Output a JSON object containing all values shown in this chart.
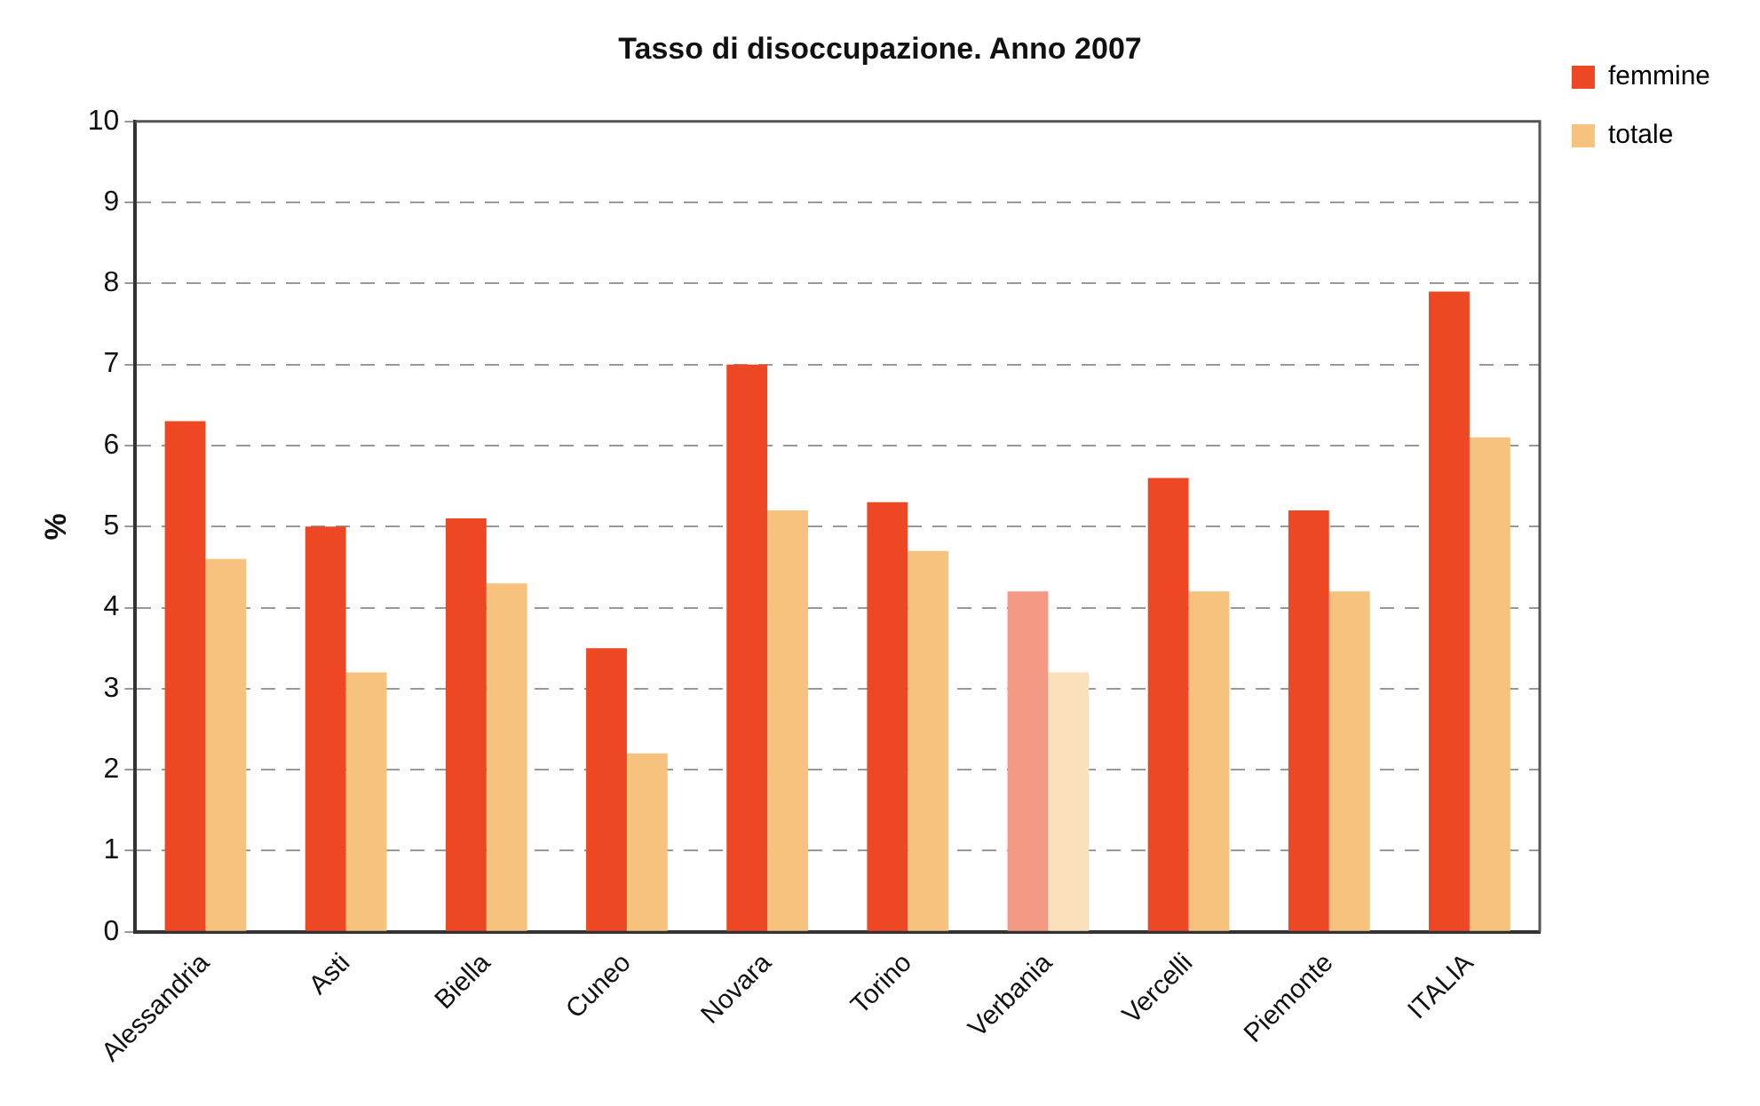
{
  "chart_data": {
    "type": "bar",
    "title": "Tasso di disoccupazione. Anno 2007",
    "ylabel": "%",
    "categories": [
      "Alessandria",
      "Asti",
      "Biella",
      "Cuneo",
      "Novara",
      "Torino",
      "Verbania",
      "Vercelli",
      "Piemonte",
      "ITALIA"
    ],
    "series": [
      {
        "name": "femmine",
        "color": "#ee4723",
        "colors": [
          "#ee4723",
          "#ee4723",
          "#ee4723",
          "#ee4723",
          "#ee4723",
          "#ee4723",
          "#f49a84",
          "#ee4723",
          "#ee4723",
          "#ee4723"
        ],
        "values": [
          6.3,
          5.0,
          5.1,
          3.5,
          7.0,
          5.3,
          4.2,
          5.6,
          5.2,
          7.9
        ]
      },
      {
        "name": "totale",
        "color": "#f7c27e",
        "colors": [
          "#f7c27e",
          "#f7c27e",
          "#f7c27e",
          "#f7c27e",
          "#f7c27e",
          "#f7c27e",
          "#fbe0bc",
          "#f7c27e",
          "#f7c27e",
          "#f7c27e"
        ],
        "values": [
          4.6,
          3.2,
          4.3,
          2.2,
          5.2,
          4.7,
          3.2,
          4.2,
          4.2,
          6.1
        ]
      }
    ],
    "ylim": [
      0,
      10
    ],
    "yticks": [
      0,
      1,
      2,
      3,
      4,
      5,
      6,
      7,
      8,
      9,
      10
    ],
    "grid": "y",
    "legend": "top right"
  }
}
